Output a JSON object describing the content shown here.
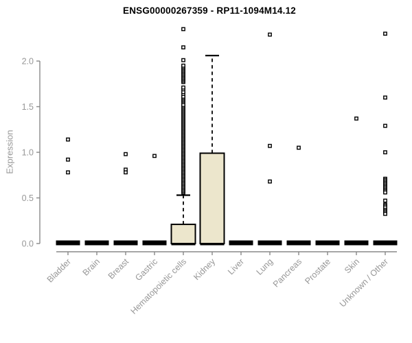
{
  "chart_data": {
    "type": "boxplot",
    "title": "ENSG00000267359 - RP11-1094M14.12",
    "xlabel": "",
    "ylabel": "Expression",
    "ylim": [
      0,
      2.4
    ],
    "grid": false,
    "legend": "none",
    "yticks": [
      {
        "value": 0.0,
        "label": "0.0"
      },
      {
        "value": 0.5,
        "label": "0.5"
      },
      {
        "value": 1.0,
        "label": "1.0"
      },
      {
        "value": 1.5,
        "label": "1.5"
      },
      {
        "value": 2.0,
        "label": "2.0"
      }
    ],
    "colors": {
      "box_fill": "#ECE6CC",
      "box_border": "#000000",
      "whisker": "#000000",
      "outlier": "#000000",
      "axis": "#888888",
      "tick_label": "#979797",
      "title": "#000000"
    },
    "categories": [
      {
        "label": "Bladder",
        "q1": 0,
        "median": 0,
        "q3": 0,
        "whisker_low": 0,
        "whisker_high": 0,
        "outliers": [
          1.14,
          0.92,
          0.78
        ]
      },
      {
        "label": "Brain",
        "q1": 0,
        "median": 0,
        "q3": 0,
        "whisker_low": 0,
        "whisker_high": 0,
        "outliers": []
      },
      {
        "label": "Breast",
        "q1": 0,
        "median": 0,
        "q3": 0,
        "whisker_low": 0,
        "whisker_high": 0,
        "outliers": [
          0.98,
          0.81,
          0.78
        ]
      },
      {
        "label": "Gastric",
        "q1": 0,
        "median": 0,
        "q3": 0,
        "whisker_low": 0,
        "whisker_high": 0,
        "outliers": [
          0.96
        ]
      },
      {
        "label": "Hematopoietic cells",
        "q1": 0,
        "median": 0,
        "q3": 0.21,
        "whisker_low": 0,
        "whisker_high": 0.53,
        "outliers": [
          0.56,
          0.575,
          0.59,
          0.605,
          0.62,
          0.635,
          0.65,
          0.665,
          0.68,
          0.695,
          0.71,
          0.725,
          0.74,
          0.755,
          0.77,
          0.785,
          0.8,
          0.815,
          0.83,
          0.845,
          0.86,
          0.875,
          0.89,
          0.905,
          0.92,
          0.935,
          0.95,
          0.965,
          0.98,
          0.995,
          1.01,
          1.025,
          1.04,
          1.055,
          1.07,
          1.085,
          1.1,
          1.115,
          1.13,
          1.145,
          1.16,
          1.175,
          1.19,
          1.205,
          1.22,
          1.235,
          1.25,
          1.265,
          1.28,
          1.295,
          1.31,
          1.325,
          1.34,
          1.355,
          1.37,
          1.385,
          1.4,
          1.415,
          1.43,
          1.445,
          1.46,
          1.475,
          1.49,
          1.505,
          1.52,
          1.55,
          1.565,
          1.58,
          1.595,
          1.61,
          1.64,
          1.66,
          1.69,
          1.71,
          1.77,
          1.785,
          1.8,
          1.815,
          1.83,
          1.845,
          1.86,
          1.875,
          1.89,
          1.905,
          1.92,
          1.935,
          1.95,
          2.01,
          2.15,
          2.35
        ]
      },
      {
        "label": "Kidney",
        "q1": 0,
        "median": 0,
        "q3": 0.99,
        "whisker_low": 0,
        "whisker_high": 2.06,
        "outliers": []
      },
      {
        "label": "Liver",
        "q1": 0,
        "median": 0,
        "q3": 0,
        "whisker_low": 0,
        "whisker_high": 0,
        "outliers": []
      },
      {
        "label": "Lung",
        "q1": 0,
        "median": 0,
        "q3": 0,
        "whisker_low": 0,
        "whisker_high": 0,
        "outliers": [
          2.29,
          1.07,
          0.68
        ]
      },
      {
        "label": "Pancreas",
        "q1": 0,
        "median": 0,
        "q3": 0,
        "whisker_low": 0,
        "whisker_high": 0,
        "outliers": [
          1.05
        ]
      },
      {
        "label": "Prostate",
        "q1": 0,
        "median": 0,
        "q3": 0,
        "whisker_low": 0,
        "whisker_high": 0,
        "outliers": []
      },
      {
        "label": "Skin",
        "q1": 0,
        "median": 0,
        "q3": 0,
        "whisker_low": 0,
        "whisker_high": 0,
        "outliers": [
          1.37
        ]
      },
      {
        "label": "Unknown / Other",
        "q1": 0,
        "median": 0,
        "q3": 0,
        "whisker_low": 0,
        "whisker_high": 0,
        "outliers": [
          2.3,
          1.6,
          1.29,
          1.0,
          0.71,
          0.695,
          0.68,
          0.665,
          0.65,
          0.635,
          0.62,
          0.605,
          0.59,
          0.575,
          0.56,
          0.47,
          0.425,
          0.41,
          0.395,
          0.37,
          0.355,
          0.34,
          0.325
        ]
      }
    ]
  }
}
